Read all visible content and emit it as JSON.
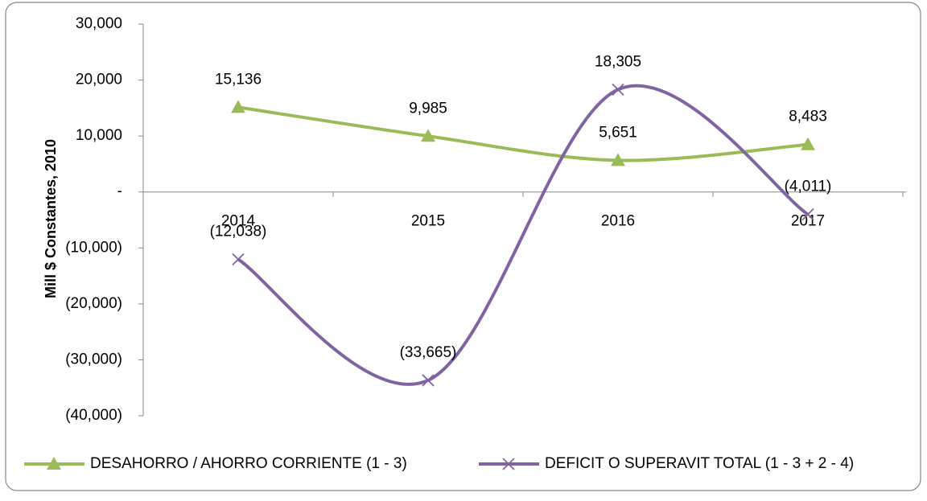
{
  "chart_data": {
    "type": "line",
    "y_axis_label": "Mill $ Constantes, 2010",
    "categories": [
      "2014",
      "2015",
      "2016",
      "2017"
    ],
    "series": [
      {
        "name": "DESAHORRO / AHORRO CORRIENTE (1 - 3)",
        "color": "#9bbb59",
        "marker": "triangle",
        "values": [
          15136,
          9985,
          5651,
          8483
        ],
        "value_labels": [
          "15,136",
          "9,985",
          "5,651",
          "8,483"
        ]
      },
      {
        "name": "DEFICIT O SUPERAVIT TOTAL (1 - 3 + 2 - 4)",
        "color": "#8064a2",
        "marker": "x",
        "values": [
          -12038,
          -33665,
          18305,
          -4011
        ],
        "value_labels": [
          "(12,038)",
          "(33,665)",
          "18,305",
          "(4,011)"
        ]
      }
    ],
    "ylim": [
      -40000,
      30000
    ],
    "yticks": [
      {
        "value": 30000,
        "label": "30,000"
      },
      {
        "value": 20000,
        "label": "20,000"
      },
      {
        "value": 10000,
        "label": "10,000"
      },
      {
        "value": 0,
        "label": "-"
      },
      {
        "value": -10000,
        "label": "(10,000)"
      },
      {
        "value": -20000,
        "label": "(20,000)"
      },
      {
        "value": -30000,
        "label": "(30,000)"
      },
      {
        "value": -40000,
        "label": "(40,000)"
      }
    ],
    "smooth": true,
    "legend": "bottom"
  }
}
